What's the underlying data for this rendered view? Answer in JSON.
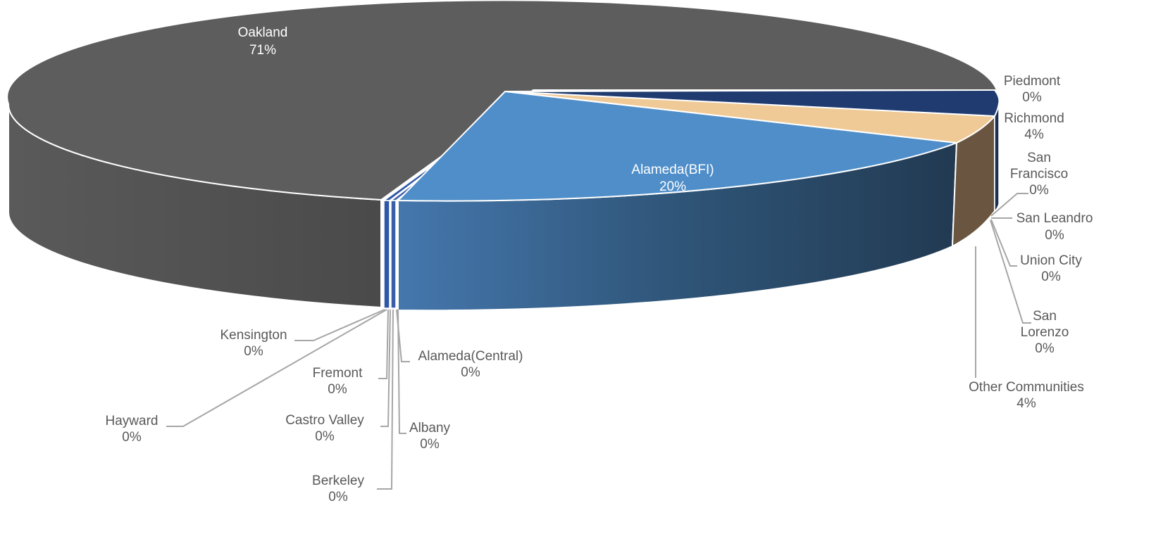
{
  "chart_data": {
    "type": "pie",
    "title": "",
    "style": "3d-exploded",
    "data_labels": "category name and percentage",
    "slices": [
      {
        "label": "Alameda(BFI)",
        "value": 20,
        "display": "20%",
        "color": "#4f8ec9"
      },
      {
        "label": "Alameda(Central)",
        "value": 0,
        "display": "0%",
        "color": "#3a5fa8"
      },
      {
        "label": "Albany",
        "value": 0,
        "display": "0%",
        "color": "#cfcfcf"
      },
      {
        "label": "Berkeley",
        "value": 0,
        "display": "0%",
        "color": "#b0b0b0"
      },
      {
        "label": "Castro Valley",
        "value": 0,
        "display": "0%",
        "color": "#999999"
      },
      {
        "label": "Fremont",
        "value": 0,
        "display": "0%",
        "color": "#8a8a8a"
      },
      {
        "label": "Hayward",
        "value": 0,
        "display": "0%",
        "color": "#7a7a7a"
      },
      {
        "label": "Kensington",
        "value": 0,
        "display": "0%",
        "color": "#2e58a6"
      },
      {
        "label": "Oakland",
        "value": 71,
        "display": "71%",
        "color": "#5d5d5d"
      },
      {
        "label": "Piedmont",
        "value": 0,
        "display": "0%",
        "color": "#1f3f7a"
      },
      {
        "label": "Richmond",
        "value": 4,
        "display": "4%",
        "color": "#1f3b70"
      },
      {
        "label": "San Francisco",
        "value": 0,
        "display": "0%",
        "color": "#1c2f52"
      },
      {
        "label": "San Leandro",
        "value": 0,
        "display": "0%",
        "color": "#2a2a2a"
      },
      {
        "label": "Union City",
        "value": 0,
        "display": "0%",
        "color": "#3b3b3b"
      },
      {
        "label": "San Lorenzo",
        "value": 0,
        "display": "0%",
        "color": "#4a4a4a"
      },
      {
        "label": "Other Communities",
        "value": 4,
        "display": "4%",
        "color": "#efca96"
      }
    ]
  }
}
